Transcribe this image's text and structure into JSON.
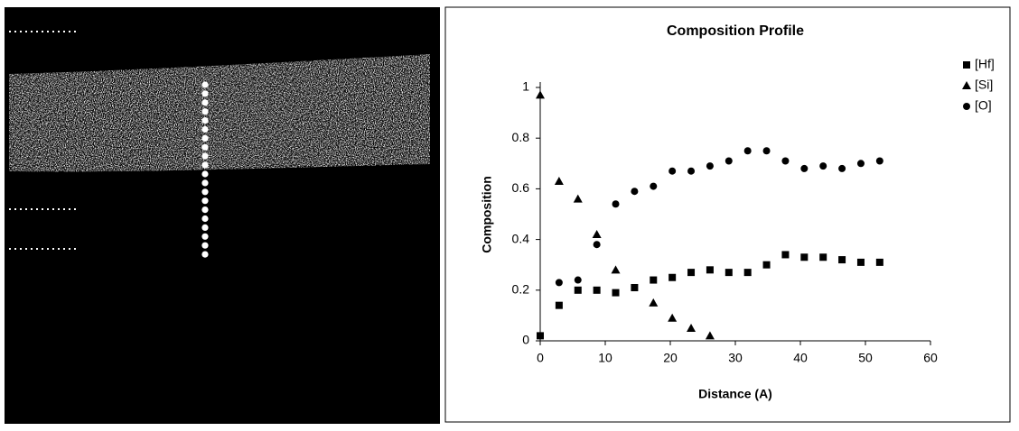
{
  "chart_data": {
    "type": "scatter",
    "title": "Composition Profile",
    "xlabel": "Distance (A)",
    "ylabel": "Composition",
    "xlim": [
      0,
      60
    ],
    "xticks": [
      0,
      10,
      20,
      30,
      40,
      50,
      60
    ],
    "ylim": [
      0,
      1
    ],
    "yticks": [
      0,
      0.2,
      0.4,
      0.6,
      0.8,
      1
    ],
    "grid": false,
    "legend": "upper right",
    "series": [
      {
        "name": "[Hf]",
        "color": "#000000",
        "marker": "square",
        "x": [
          0,
          2.9,
          5.8,
          8.7,
          11.6,
          14.5,
          17.4,
          20.3,
          23.2,
          26.1,
          29,
          31.9,
          34.8,
          37.7,
          40.6,
          43.5,
          46.4,
          49.3,
          52.2
        ],
        "values": [
          0.02,
          0.14,
          0.2,
          0.2,
          0.19,
          0.21,
          0.24,
          0.25,
          0.27,
          0.28,
          0.27,
          0.27,
          0.3,
          0.34,
          0.33,
          0.33,
          0.32,
          0.31,
          0.31
        ]
      },
      {
        "name": "[Si]",
        "color": "#000000",
        "marker": "triangle",
        "x": [
          0,
          2.9,
          5.8,
          8.7,
          11.6,
          17.4,
          20.3,
          23.2,
          26.1
        ],
        "values": [
          0.97,
          0.63,
          0.56,
          0.42,
          0.28,
          0.15,
          0.09,
          0.05,
          0.02
        ]
      },
      {
        "name": "[O]",
        "color": "#000000",
        "marker": "circle",
        "x": [
          2.9,
          5.8,
          8.7,
          11.6,
          14.5,
          17.4,
          20.3,
          23.2,
          26.1,
          29,
          31.9,
          34.8,
          37.7,
          40.6,
          43.5,
          46.4,
          49.3,
          52.2
        ],
        "values": [
          0.23,
          0.24,
          0.38,
          0.54,
          0.59,
          0.61,
          0.67,
          0.67,
          0.69,
          0.71,
          0.75,
          0.75,
          0.71,
          0.68,
          0.69,
          0.68,
          0.7,
          0.71
        ]
      }
    ]
  }
}
